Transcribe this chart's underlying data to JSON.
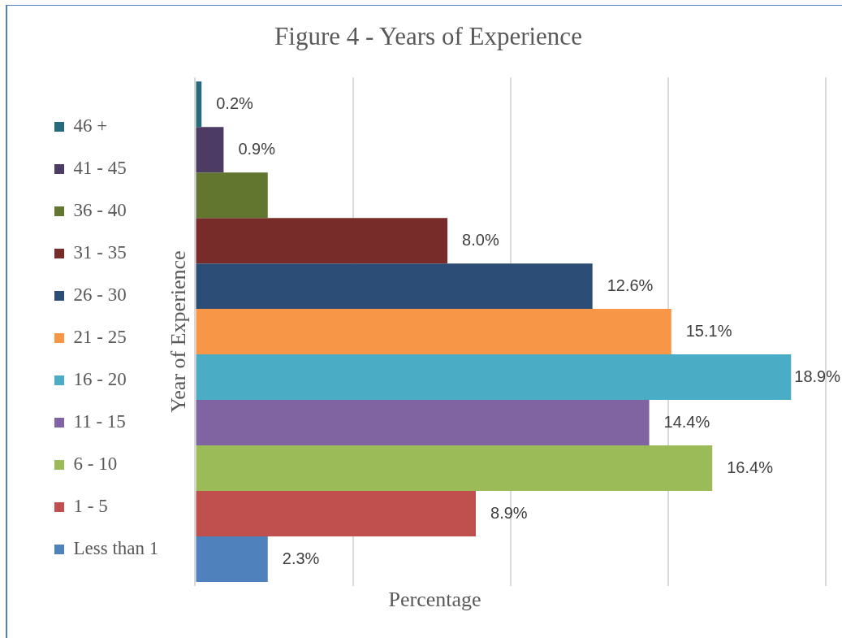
{
  "chart_data": {
    "type": "bar",
    "orientation": "horizontal",
    "title": "Figure 4 - Years of Experience",
    "xlabel": "Percentage",
    "ylabel": "Year of Experience",
    "categories": [
      null
    ],
    "series": [
      {
        "name": "46 +",
        "color": "#276a7c",
        "values": [
          0.2
        ],
        "value_labels": [
          "0.2%"
        ]
      },
      {
        "name": "41 - 45",
        "color": "#4c3b62",
        "values": [
          0.9
        ],
        "value_labels": [
          "0.9%"
        ]
      },
      {
        "name": "36 - 40",
        "color": "#62762f",
        "values": [
          2.3
        ],
        "value_labels": [
          null
        ]
      },
      {
        "name": "31 - 35",
        "color": "#772c2a",
        "values": [
          8.0
        ],
        "value_labels": [
          "8.0%"
        ]
      },
      {
        "name": "26 - 30",
        "color": "#2c4d75",
        "values": [
          12.6
        ],
        "value_labels": [
          "12.6%"
        ]
      },
      {
        "name": "21 - 25",
        "color": "#f79646",
        "values": [
          15.1
        ],
        "value_labels": [
          "15.1%"
        ]
      },
      {
        "name": "16 - 20",
        "color": "#4bacc6",
        "values": [
          18.9
        ],
        "value_labels": [
          "18.9%"
        ]
      },
      {
        "name": "11 - 15",
        "color": "#8064a2",
        "values": [
          14.4
        ],
        "value_labels": [
          "14.4%"
        ]
      },
      {
        "name": "6 - 10",
        "color": "#9bbb59",
        "values": [
          16.4
        ],
        "value_labels": [
          "16.4%"
        ]
      },
      {
        "name": "1 - 5",
        "color": "#c0504d",
        "values": [
          8.9
        ],
        "value_labels": [
          "8.9%"
        ]
      },
      {
        "name": "Less than 1",
        "color": "#4f81bd",
        "values": [
          2.3
        ],
        "value_labels": [
          "2.3%"
        ]
      }
    ],
    "xlim": [
      0,
      20
    ],
    "xticks": [
      {
        "value": 0,
        "label": null
      },
      {
        "value": 5,
        "label": null
      },
      {
        "value": 10,
        "label": null
      },
      {
        "value": 15,
        "label": null
      },
      {
        "value": 20,
        "label": null
      }
    ],
    "grid": "x",
    "legend": "left",
    "tick_labels": false
  }
}
